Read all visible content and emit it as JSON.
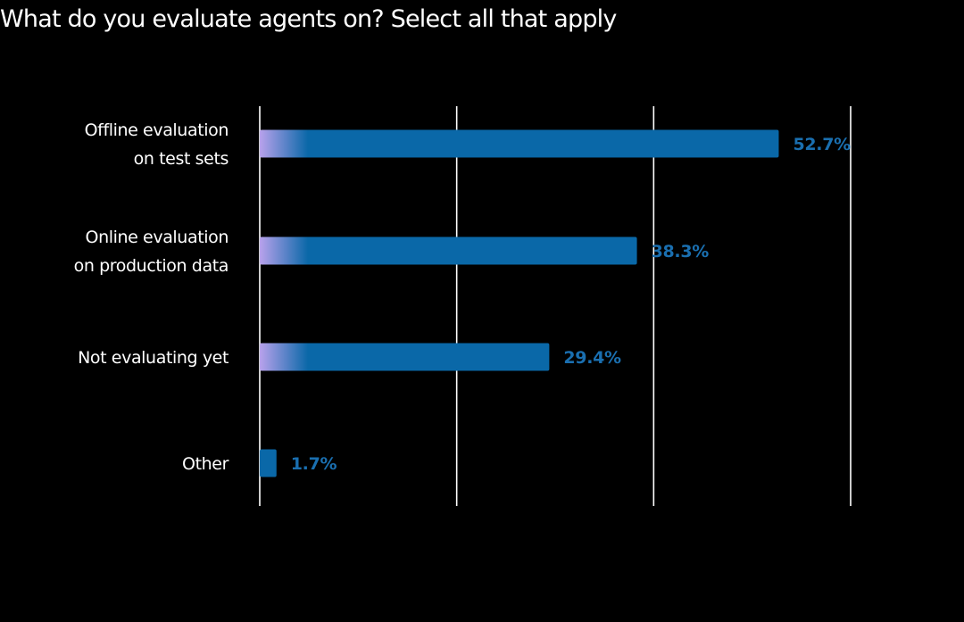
{
  "chart_data": {
    "type": "bar",
    "orientation": "horizontal",
    "title": "What do you evaluate agents on? Select all that apply",
    "categories": [
      [
        "Offline evaluation",
        "on test sets"
      ],
      [
        "Online evaluation",
        "on production data"
      ],
      [
        "Not evaluating yet"
      ],
      [
        "Other"
      ]
    ],
    "values": [
      52.7,
      38.3,
      29.4,
      1.7
    ],
    "value_labels": [
      "52.7%",
      "38.3%",
      "29.4%",
      "1.7%"
    ],
    "xlim": [
      0,
      60
    ],
    "gridlines": [
      0,
      20,
      40,
      60
    ],
    "grid": true,
    "xlabel": "",
    "ylabel": "",
    "colors": {
      "bar": "#0a68a8",
      "bar_gradient_start": "#b8a2ec",
      "value_label": "#1a6fb0",
      "grid": "#ffffff",
      "background": "#000000",
      "text": "#ffffff"
    }
  }
}
